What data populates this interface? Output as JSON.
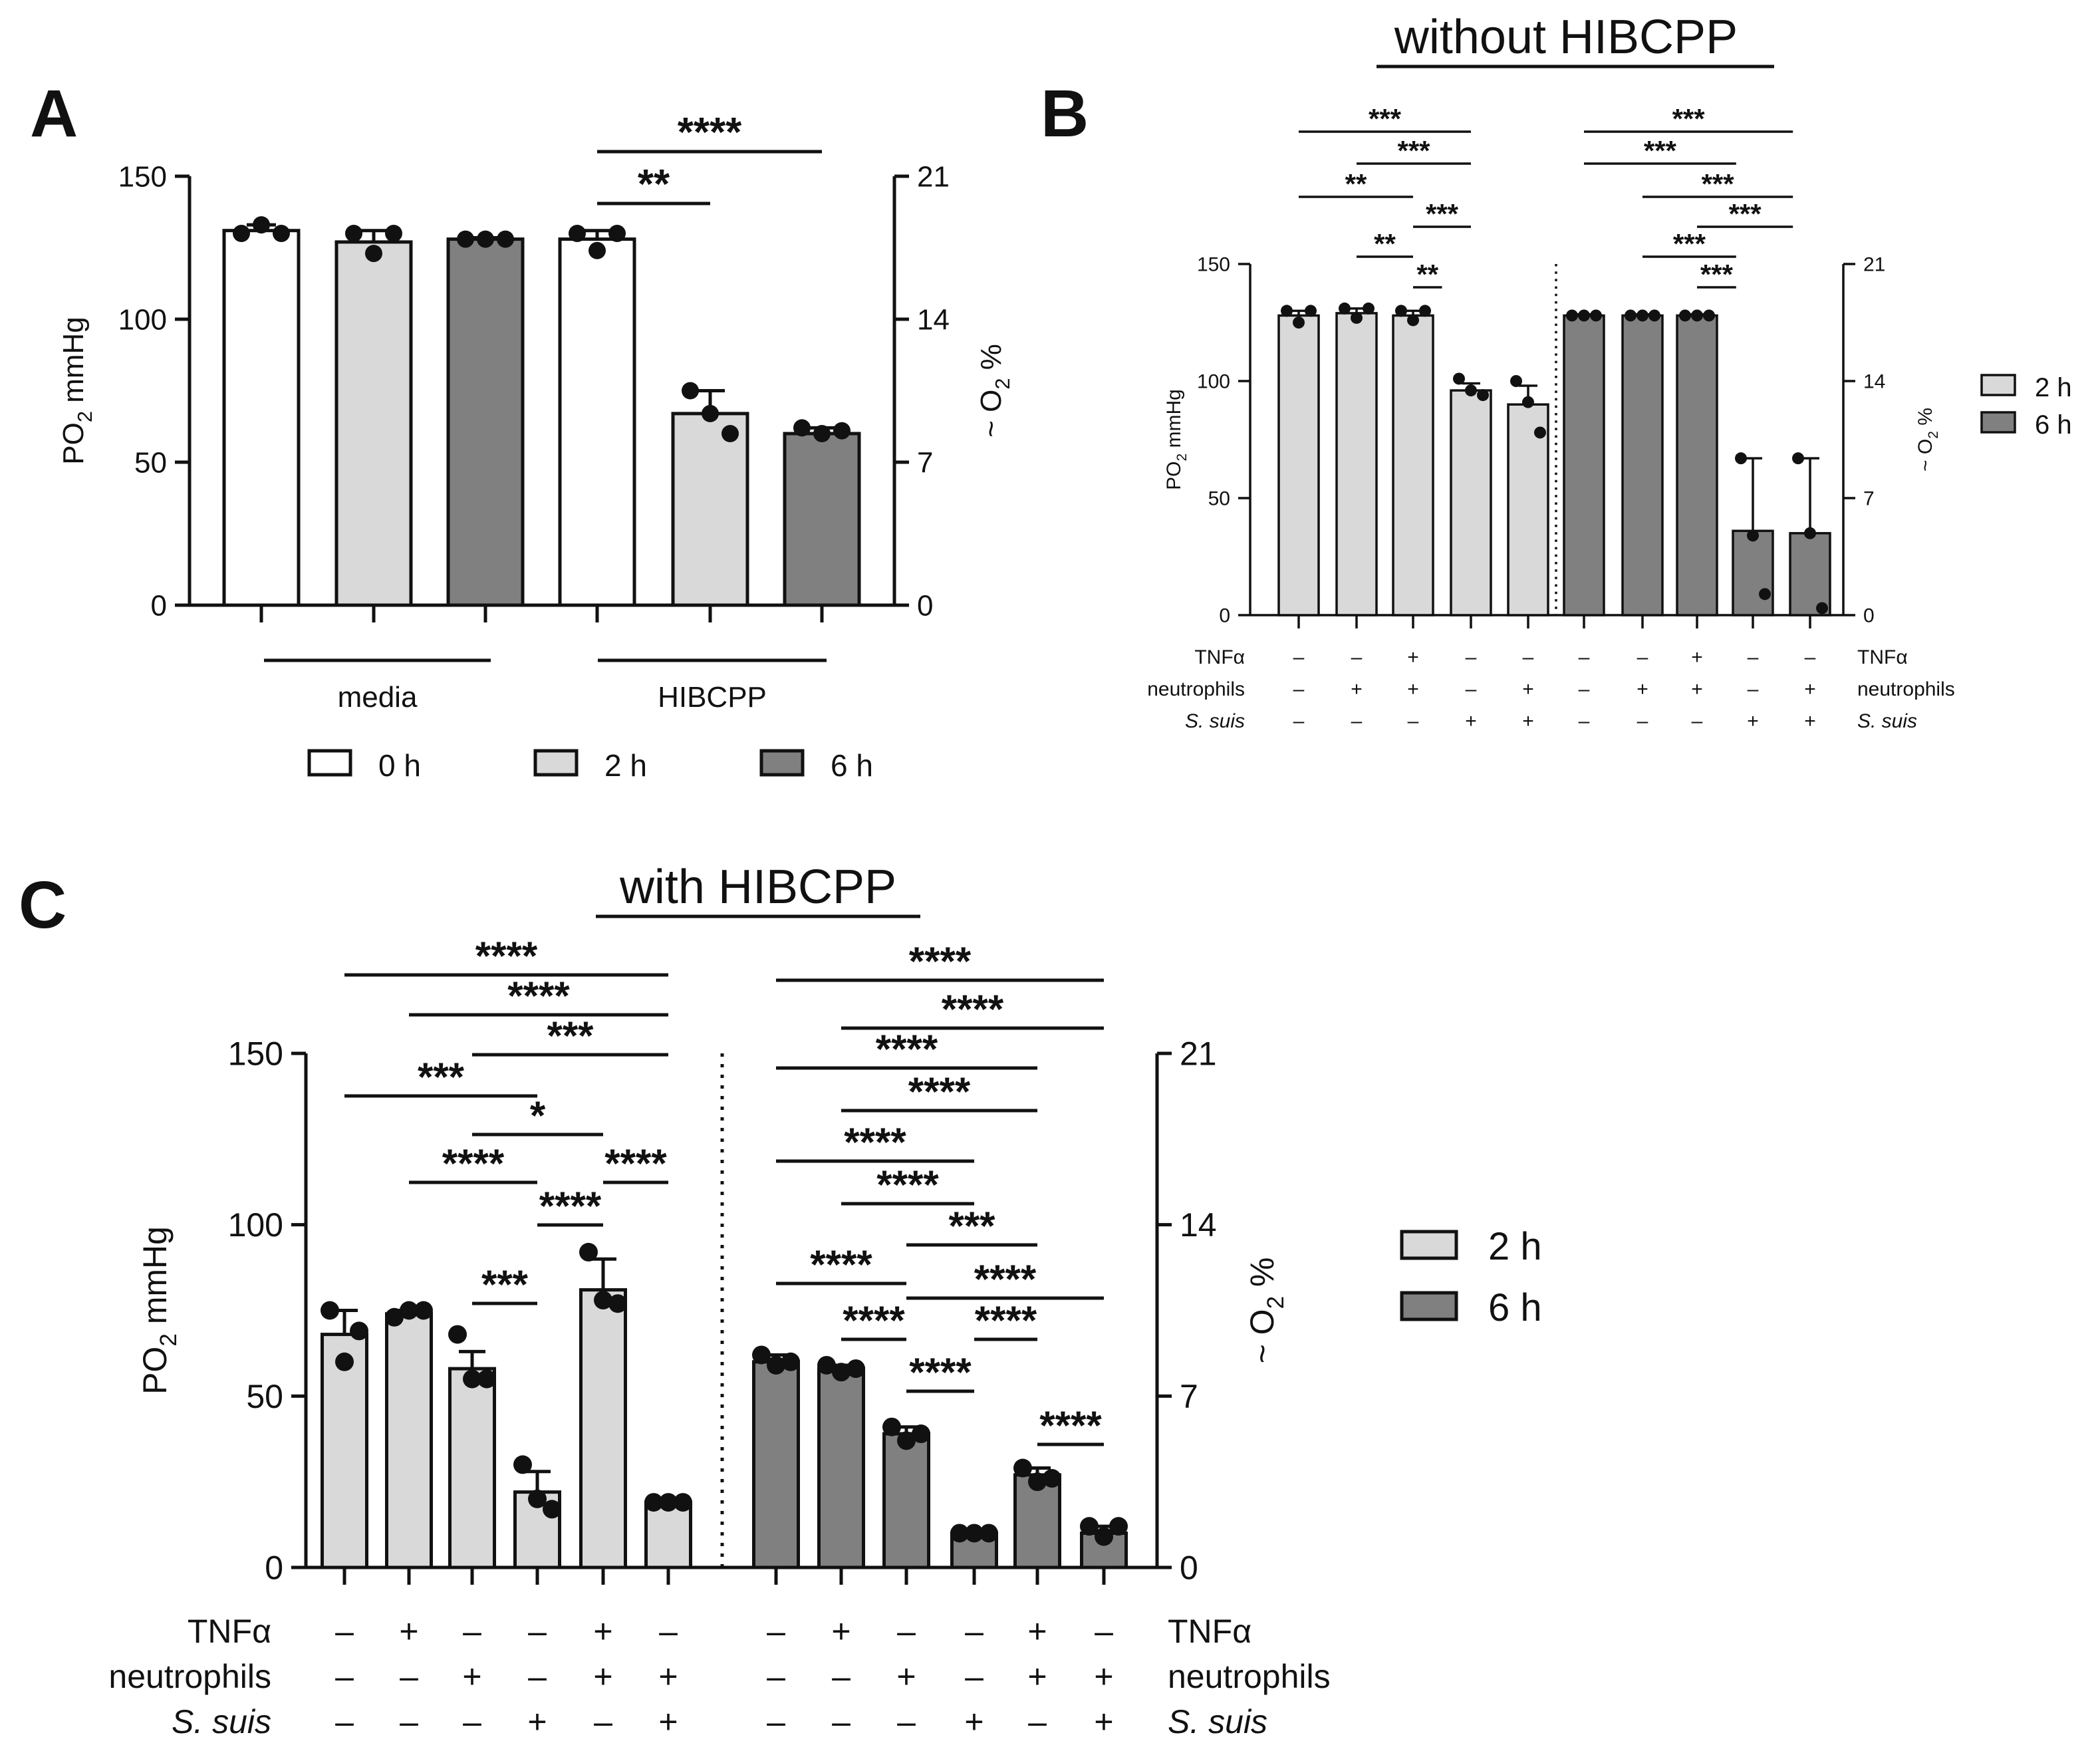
{
  "colors": {
    "h0": "#ffffff",
    "h2": "#d9d9d9",
    "h6": "#808080",
    "ink": "#111111"
  },
  "chart_data": [
    {
      "panel": "A",
      "type": "bar",
      "title": "",
      "ylabel_main": "PO",
      "ylabel_sub": "2",
      "ylabel_unit": " mmHg",
      "ylim": [
        0,
        150
      ],
      "yticks": [
        "0",
        "50",
        "100",
        "150"
      ],
      "y2label_main": "~ O",
      "y2label_sub": "2",
      "y2label_unit": " %",
      "y2ticks": [
        "0",
        "7",
        "14",
        "21"
      ],
      "groups": [
        "media",
        "HIBCPP"
      ],
      "bars": [
        {
          "time": "0 h",
          "group": "media",
          "mean": 131,
          "sd": 2,
          "points": [
            130,
            133,
            130
          ]
        },
        {
          "time": "2 h",
          "group": "media",
          "mean": 127,
          "sd": 4,
          "points": [
            130,
            123,
            130
          ]
        },
        {
          "time": "6 h",
          "group": "media",
          "mean": 128,
          "sd": 0.5,
          "points": [
            128,
            128,
            128
          ]
        },
        {
          "time": "0 h",
          "group": "HIBCPP",
          "mean": 128,
          "sd": 3,
          "points": [
            130,
            124,
            130
          ]
        },
        {
          "time": "2 h",
          "group": "HIBCPP",
          "mean": 67,
          "sd": 8,
          "points": [
            75,
            67,
            60
          ]
        },
        {
          "time": "6 h",
          "group": "HIBCPP",
          "mean": 60,
          "sd": 2,
          "points": [
            62,
            60,
            61
          ]
        }
      ],
      "significance": [
        {
          "from": 3,
          "to": 5,
          "label": "****"
        },
        {
          "from": 3,
          "to": 4,
          "label": "**"
        }
      ],
      "legend": [
        "0 h",
        "2 h",
        "6 h"
      ]
    },
    {
      "panel": "B",
      "type": "bar",
      "title": "without HIBCPP",
      "ylabel_main": "PO",
      "ylabel_sub": "2",
      "ylabel_unit": " mmHg",
      "ylim": [
        0,
        150
      ],
      "yticks": [
        "0",
        "50",
        "100",
        "150"
      ],
      "y2label_main": "~ O",
      "y2label_sub": "2",
      "y2label_unit": " %",
      "y2ticks": [
        "0",
        "7",
        "14",
        "21"
      ],
      "rows": [
        {
          "label": "TNFα",
          "italic": false,
          "signs": [
            "–",
            "–",
            "+",
            "–",
            "–",
            "–",
            "–",
            "+",
            "–",
            "–"
          ]
        },
        {
          "label": "neutrophils",
          "italic": false,
          "signs": [
            "–",
            "+",
            "+",
            "–",
            "+",
            "–",
            "+",
            "+",
            "–",
            "+"
          ]
        },
        {
          "label": "S. suis",
          "italic": true,
          "signs": [
            "–",
            "–",
            "–",
            "+",
            "+",
            "–",
            "–",
            "–",
            "+",
            "+"
          ]
        }
      ],
      "bars": [
        {
          "time": "2 h",
          "mean": 128,
          "sd": 2,
          "points": [
            130,
            125,
            130
          ]
        },
        {
          "time": "2 h",
          "mean": 129,
          "sd": 2,
          "points": [
            131,
            127,
            131
          ]
        },
        {
          "time": "2 h",
          "mean": 128,
          "sd": 2,
          "points": [
            130,
            126,
            130
          ]
        },
        {
          "time": "2 h",
          "mean": 96,
          "sd": 3,
          "points": [
            101,
            96,
            94
          ]
        },
        {
          "time": "2 h",
          "mean": 90,
          "sd": 8,
          "points": [
            100,
            91,
            78
          ]
        },
        {
          "time": "6 h",
          "mean": 128,
          "sd": 0.5,
          "points": [
            128,
            128,
            128
          ]
        },
        {
          "time": "6 h",
          "mean": 128,
          "sd": 0.5,
          "points": [
            128,
            128,
            128
          ]
        },
        {
          "time": "6 h",
          "mean": 128,
          "sd": 0.5,
          "points": [
            128,
            128,
            128
          ]
        },
        {
          "time": "6 h",
          "mean": 36,
          "sd": 31,
          "points": [
            67,
            34,
            9
          ]
        },
        {
          "time": "6 h",
          "mean": 35,
          "sd": 32,
          "points": [
            67,
            35,
            3
          ]
        }
      ],
      "significance": [
        {
          "from": 0,
          "to": 3,
          "label": "***"
        },
        {
          "from": 1,
          "to": 3,
          "label": "***"
        },
        {
          "from": 0,
          "to": 2,
          "label": "**"
        },
        {
          "from": 2,
          "to": 3,
          "label": "***"
        },
        {
          "from": 1,
          "to": 2,
          "label": "**"
        },
        {
          "from": 2,
          "to": 2.5,
          "label": "**"
        },
        {
          "from": 5,
          "to": 8.7,
          "label": "***"
        },
        {
          "from": 5,
          "to": 7.7,
          "label": "***"
        },
        {
          "from": 6,
          "to": 8.7,
          "label": "***"
        },
        {
          "from": 7,
          "to": 8.7,
          "label": "***"
        },
        {
          "from": 6,
          "to": 7.7,
          "label": "***"
        },
        {
          "from": 7,
          "to": 7.7,
          "label": "***"
        }
      ],
      "legend": [
        "2 h",
        "6 h"
      ]
    },
    {
      "panel": "C",
      "type": "bar",
      "title": "with HIBCPP",
      "ylabel_main": "PO",
      "ylabel_sub": "2",
      "ylabel_unit": " mmHg",
      "ylim": [
        0,
        150
      ],
      "yticks": [
        "0",
        "50",
        "100",
        "150"
      ],
      "y2label_main": "~ O",
      "y2label_sub": "2",
      "y2label_unit": " %",
      "y2ticks": [
        "0",
        "7",
        "14",
        "21"
      ],
      "rows": [
        {
          "label": "TNFα",
          "italic": false,
          "signs": [
            "–",
            "+",
            "–",
            "–",
            "+",
            "–",
            "–",
            "+",
            "–",
            "–",
            "+",
            "–"
          ]
        },
        {
          "label": "neutrophils",
          "italic": false,
          "signs": [
            "–",
            "–",
            "+",
            "–",
            "+",
            "+",
            "–",
            "–",
            "+",
            "–",
            "+",
            "+"
          ]
        },
        {
          "label": "S. suis",
          "italic": true,
          "signs": [
            "–",
            "–",
            "–",
            "+",
            "–",
            "+",
            "–",
            "–",
            "–",
            "+",
            "–",
            "+"
          ]
        }
      ],
      "bars": [
        {
          "time": "2 h",
          "mean": 68,
          "sd": 7,
          "points": [
            75,
            60,
            69
          ]
        },
        {
          "time": "2 h",
          "mean": 74,
          "sd": 1,
          "points": [
            73,
            75,
            75
          ]
        },
        {
          "time": "2 h",
          "mean": 58,
          "sd": 5,
          "points": [
            68,
            55,
            55
          ]
        },
        {
          "time": "2 h",
          "mean": 22,
          "sd": 6,
          "points": [
            30,
            20,
            17
          ]
        },
        {
          "time": "2 h",
          "mean": 81,
          "sd": 9,
          "points": [
            92,
            78,
            77
          ]
        },
        {
          "time": "2 h",
          "mean": 19,
          "sd": 0.5,
          "points": [
            19,
            19,
            19
          ]
        },
        {
          "time": "6 h",
          "mean": 60,
          "sd": 2,
          "points": [
            62,
            59,
            60
          ]
        },
        {
          "time": "6 h",
          "mean": 58,
          "sd": 1,
          "points": [
            59,
            57,
            58
          ]
        },
        {
          "time": "6 h",
          "mean": 39,
          "sd": 2,
          "points": [
            41,
            37,
            39
          ]
        },
        {
          "time": "6 h",
          "mean": 10,
          "sd": 0.5,
          "points": [
            10,
            10,
            10
          ]
        },
        {
          "time": "6 h",
          "mean": 27,
          "sd": 2,
          "points": [
            29,
            25,
            26
          ]
        },
        {
          "time": "6 h",
          "mean": 10,
          "sd": 2,
          "points": [
            12,
            9,
            12
          ]
        }
      ],
      "significance": [
        {
          "from": 0,
          "to": 5,
          "label": "****"
        },
        {
          "from": 1,
          "to": 5,
          "label": "****"
        },
        {
          "from": 2,
          "to": 5,
          "label": "***"
        },
        {
          "from": 0,
          "to": 3,
          "label": "***"
        },
        {
          "from": 2,
          "to": 4,
          "label": "*"
        },
        {
          "from": 1,
          "to": 3,
          "label": "****"
        },
        {
          "from": 4,
          "to": 5,
          "label": "****"
        },
        {
          "from": 3,
          "to": 4,
          "label": "****"
        },
        {
          "from": 2,
          "to": 3,
          "label": "***"
        },
        {
          "from": 6,
          "to": 11,
          "label": "****"
        },
        {
          "from": 7,
          "to": 11,
          "label": "****"
        },
        {
          "from": 6,
          "to": 10,
          "label": "****"
        },
        {
          "from": 7,
          "to": 10,
          "label": "****"
        },
        {
          "from": 6,
          "to": 9,
          "label": "****"
        },
        {
          "from": 7,
          "to": 9,
          "label": "****"
        },
        {
          "from": 8,
          "to": 10,
          "label": "***"
        },
        {
          "from": 6,
          "to": 8,
          "label": "****"
        },
        {
          "from": 8,
          "to": 11,
          "label": "****"
        },
        {
          "from": 7,
          "to": 8,
          "label": "****"
        },
        {
          "from": 9,
          "to": 10,
          "label": "****"
        },
        {
          "from": 8,
          "to": 9,
          "label": "****"
        },
        {
          "from": 10,
          "to": 11,
          "label": "****"
        }
      ],
      "legend": [
        "2 h",
        "6 h"
      ]
    }
  ]
}
